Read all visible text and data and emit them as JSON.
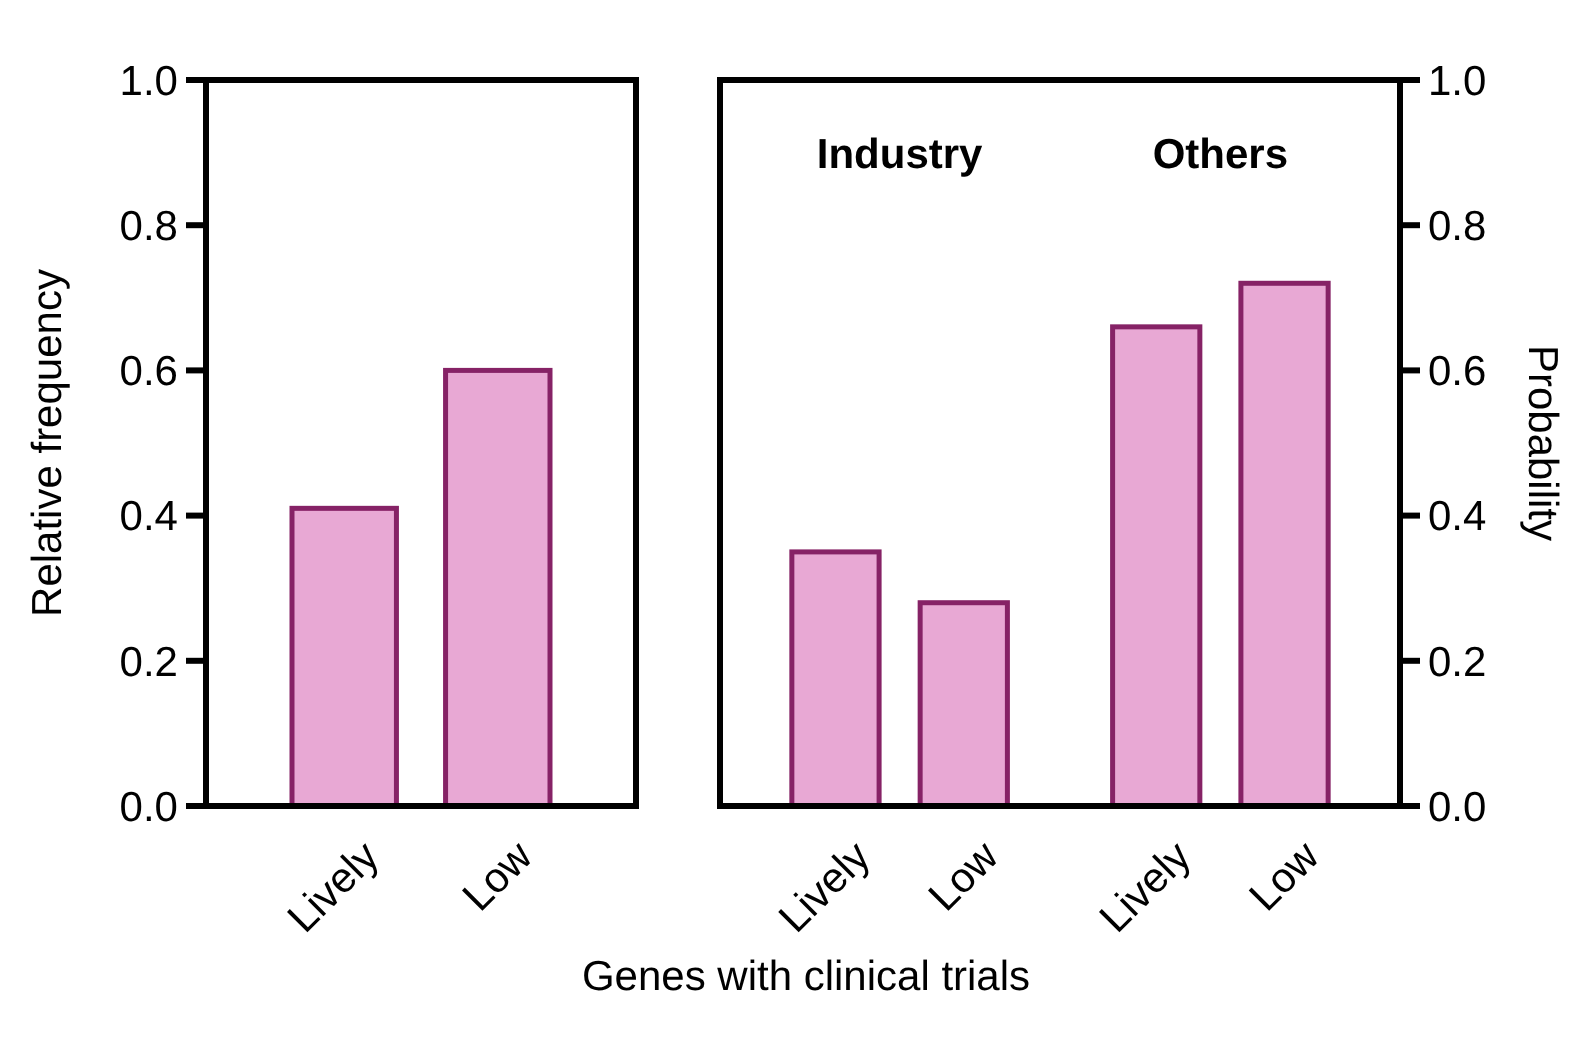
{
  "chart_data": [
    {
      "type": "bar",
      "ylabel": "Relative frequency",
      "xlabel": "Genes with clinical trials",
      "categories": [
        "Lively",
        "Low"
      ],
      "values": [
        0.41,
        0.6
      ],
      "color": "#e8a8d4",
      "ylim": [
        0,
        1
      ],
      "yticks": [
        {
          "value": 0,
          "label": "0.0"
        },
        0.2,
        0.4,
        0.6,
        0.8,
        {
          "value": 1,
          "label": "1.0"
        }
      ],
      "grid": false
    },
    {
      "type": "bar",
      "y2label": "Probability",
      "categories": [
        "Lively",
        "Low",
        "Lively",
        "Low"
      ],
      "series": [
        {
          "values": [
            0.35,
            0.28,
            0.66,
            0.72
          ],
          "color": "#e8a8d4",
          "axis": "y2"
        }
      ],
      "y2lim": [
        0,
        1
      ],
      "y2ticks": [
        {
          "value": 0,
          "label": "0.0"
        },
        0.2,
        0.4,
        0.6,
        0.8,
        {
          "value": 1,
          "label": "1.0"
        }
      ],
      "annotations": [
        "Industry",
        "Others"
      ],
      "grid": false
    }
  ]
}
